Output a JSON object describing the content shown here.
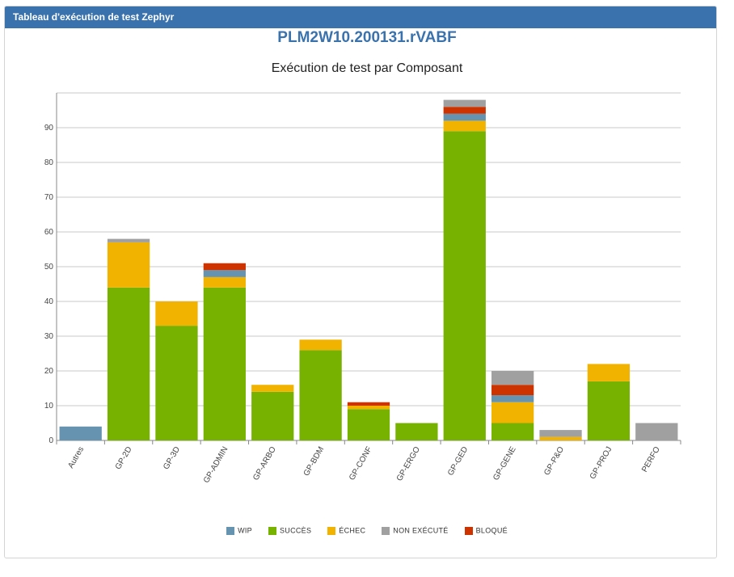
{
  "panel": {
    "title": "Tableau d'exécution de test Zephyr"
  },
  "main_title": "PLM2W10.200131.rVABF",
  "chart_data": {
    "type": "bar",
    "stacked": true,
    "title": "Exécution de test par Composant",
    "xlabel": "",
    "ylabel": "",
    "ylim": [
      0,
      100
    ],
    "yticks": [
      0,
      10,
      20,
      30,
      40,
      50,
      60,
      70,
      80,
      90
    ],
    "grid": true,
    "legend_position": "bottom",
    "categories": [
      "Autres",
      "GP-2D",
      "GP-3D",
      "GP-ADMIN",
      "GP-ARBO",
      "GP-BDM",
      "GP-CONF",
      "GP-ERGO",
      "GP-GED",
      "GP-GENE",
      "GP-P&O",
      "GP-PROJ",
      "PERFO"
    ],
    "series": [
      {
        "name": "SUCCÈS",
        "color": "#77b200",
        "values": [
          0,
          44,
          33,
          44,
          14,
          26,
          9,
          5,
          89,
          5,
          0,
          17,
          0
        ]
      },
      {
        "name": "ÉCHEC",
        "color": "#f2b300",
        "values": [
          0,
          13,
          7,
          3,
          2,
          3,
          1,
          0,
          3,
          6,
          1,
          5,
          0
        ]
      },
      {
        "name": "WIP",
        "color": "#6693b0",
        "values": [
          4,
          0,
          0,
          2,
          0,
          0,
          0,
          0,
          2,
          2,
          0,
          0,
          0
        ]
      },
      {
        "name": "BLOQUÉ",
        "color": "#cc3300",
        "values": [
          0,
          0,
          0,
          2,
          0,
          0,
          1,
          0,
          2,
          3,
          0,
          0,
          0
        ]
      },
      {
        "name": "NON EXÉCUTÉ",
        "color": "#a0a0a0",
        "values": [
          0,
          1,
          0,
          0,
          0,
          0,
          0,
          0,
          2,
          4,
          2,
          0,
          5
        ]
      }
    ],
    "legend_order": [
      "WIP",
      "SUCCÈS",
      "ÉCHEC",
      "NON EXÉCUTÉ",
      "BLOQUÉ"
    ]
  }
}
